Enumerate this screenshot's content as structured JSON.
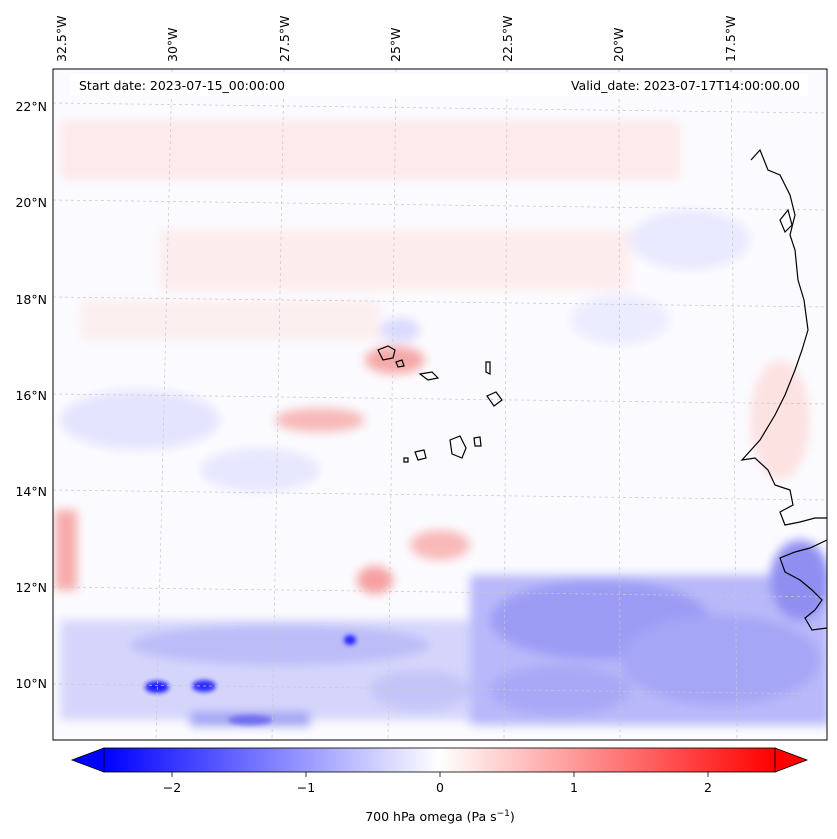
{
  "map": {
    "start_label": "Start date: 2023-07-15_00:00:00",
    "valid_label": "Valid_date: 2023-07-17T14:00:00.00",
    "lon_labels": [
      "32.5°W",
      "30°W",
      "27.5°W",
      "25°W",
      "22.5°W",
      "20°W",
      "17.5°W"
    ],
    "lat_labels": [
      "22°N",
      "20°N",
      "18°N",
      "16°N",
      "14°N",
      "12°N",
      "10°N"
    ],
    "colorbar": {
      "ticks": [
        "−2",
        "−1",
        "0",
        "1",
        "2"
      ],
      "label_main": "700 hPa omega (Pa s",
      "label_sup": "−1",
      "label_tail": ")",
      "range": [
        -2.6,
        2.6
      ],
      "cmap": "bwr",
      "colors": {
        "negative": "#0000ff",
        "zero": "#ffffff",
        "positive": "#ff0000"
      }
    },
    "gridlines": "dashed-light-gray",
    "coastline_color": "#000000"
  }
}
